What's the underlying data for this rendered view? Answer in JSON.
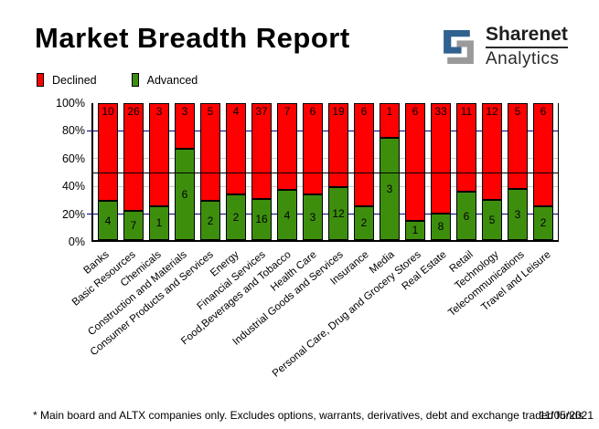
{
  "title": "Market Breadth Report",
  "logo": {
    "line1": "Sharenet",
    "line2": "Analytics",
    "blue": "#31618F",
    "gray": "#9A9A9A"
  },
  "legend": [
    {
      "label": "Declined",
      "color": "#FF0000"
    },
    {
      "label": "Advanced",
      "color": "#3E8E0E"
    }
  ],
  "footer": {
    "note": "* Main board and ALTX companies only. Excludes options, warrants, derivatives, debt and exchange traded funds",
    "date": "11/05/2021"
  },
  "chart_data": {
    "type": "bar",
    "stacked": true,
    "normalized": "percent",
    "title": "Market Breadth Report",
    "categories": [
      "Banks",
      "Basic Resources",
      "Chemicals",
      "Construction and Materials",
      "Consumer Products and Services",
      "Energy",
      "Financial Services",
      "Food,Beverages and Tobacco",
      "Health Care",
      "Industrial Goods and Services",
      "Insurance",
      "Media",
      "Personal Care, Drug and Grocery Stores",
      "Real Estate",
      "Retail",
      "Technology",
      "Telecommunications",
      "Travel and Leisure"
    ],
    "series": [
      {
        "name": "Declined",
        "color": "#FF0000",
        "values": [
          10,
          26,
          3,
          3,
          5,
          4,
          37,
          7,
          6,
          19,
          6,
          1,
          6,
          33,
          11,
          12,
          5,
          6
        ]
      },
      {
        "name": "Advanced",
        "color": "#3E8E0E",
        "values": [
          4,
          7,
          1,
          6,
          2,
          2,
          16,
          4,
          3,
          12,
          2,
          3,
          1,
          8,
          6,
          5,
          3,
          2
        ]
      }
    ],
    "ylim": [
      0,
      100
    ],
    "y_ticks": [
      {
        "pct": 0,
        "label": "0%"
      },
      {
        "pct": 20,
        "label": "20%"
      },
      {
        "pct": 40,
        "label": "40%"
      },
      {
        "pct": 60,
        "label": "60%"
      },
      {
        "pct": 80,
        "label": "80%"
      },
      {
        "pct": 100,
        "label": "100%"
      }
    ],
    "grid": [
      {
        "pct": 20,
        "color": "#000080",
        "tick": true,
        "over_bars": false
      },
      {
        "pct": 40,
        "color": "#C9C9C9",
        "tick": false,
        "over_bars": false
      },
      {
        "pct": 50,
        "color": "#000000",
        "tick": false,
        "over_bars": true
      },
      {
        "pct": 60,
        "color": "#C9C9C9",
        "tick": false,
        "over_bars": false
      },
      {
        "pct": 80,
        "color": "#000080",
        "tick": true,
        "over_bars": false
      }
    ],
    "legend_position": "top-left",
    "bar_value_labels": true
  }
}
